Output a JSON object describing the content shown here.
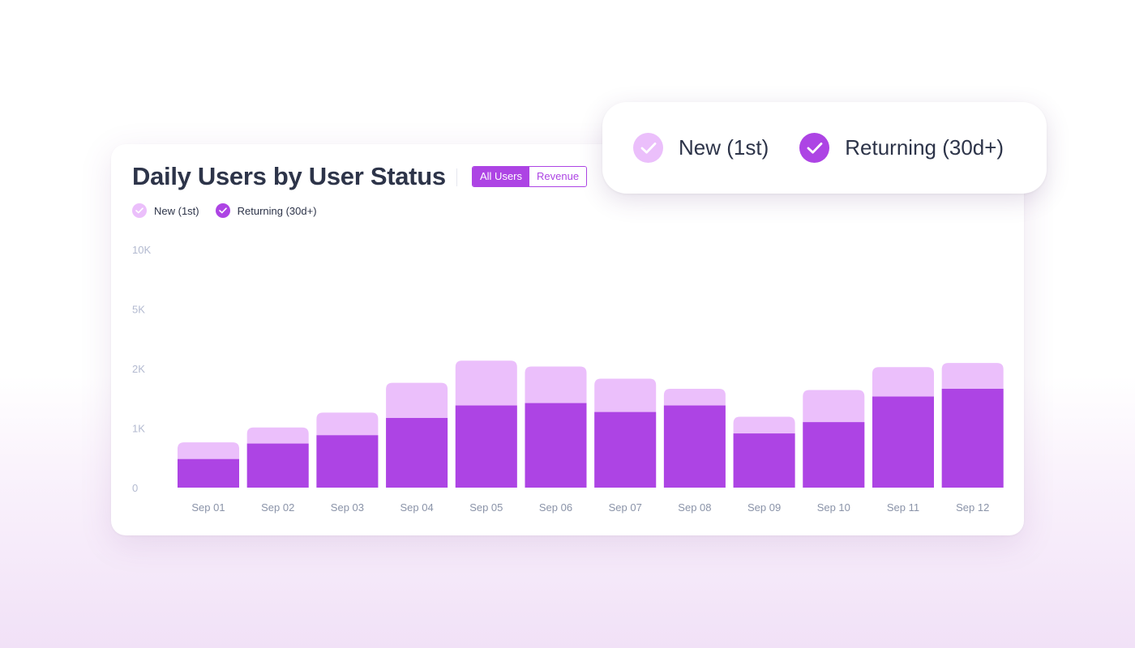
{
  "title": "Daily Users by User Status",
  "toggle": {
    "options": [
      "All Users",
      "Revenue"
    ],
    "selected": "All Users"
  },
  "legend": [
    {
      "name": "New (1st)",
      "color": "#ebbffb",
      "checked": true
    },
    {
      "name": "Returning (30d+)",
      "color": "#ad44e4",
      "checked": true
    }
  ],
  "popup_legend": [
    {
      "name": "New (1st)",
      "color": "#ebbffb",
      "checked": true
    },
    {
      "name": "Returning (30d+)",
      "color": "#ad44e4",
      "checked": true
    }
  ],
  "chart_data": {
    "type": "bar",
    "stacked": true,
    "categories": [
      "Sep 01",
      "Sep 02",
      "Sep 03",
      "Sep 04",
      "Sep 05",
      "Sep 06",
      "Sep 07",
      "Sep 08",
      "Sep 09",
      "Sep 10",
      "Sep 11",
      "Sep 12"
    ],
    "y_ticks": [
      {
        "label": "0",
        "value": 0
      },
      {
        "label": "1K",
        "value": 1000
      },
      {
        "label": "2K",
        "value": 2000
      },
      {
        "label": "5K",
        "value": 5000
      },
      {
        "label": "10K",
        "value": 10000
      }
    ],
    "series": [
      {
        "name": "Returning (30d+)",
        "color": "#ad44e4",
        "values": [
          480,
          740,
          880,
          1170,
          1380,
          1420,
          1270,
          1380,
          910,
          1100,
          1530,
          1660
        ]
      },
      {
        "name": "New (1st)",
        "color": "#ebbffb",
        "values": [
          280,
          270,
          380,
          590,
          1020,
          680,
          560,
          280,
          280,
          540,
          540,
          620
        ]
      }
    ],
    "grid": false,
    "legend_position": "top-left"
  }
}
